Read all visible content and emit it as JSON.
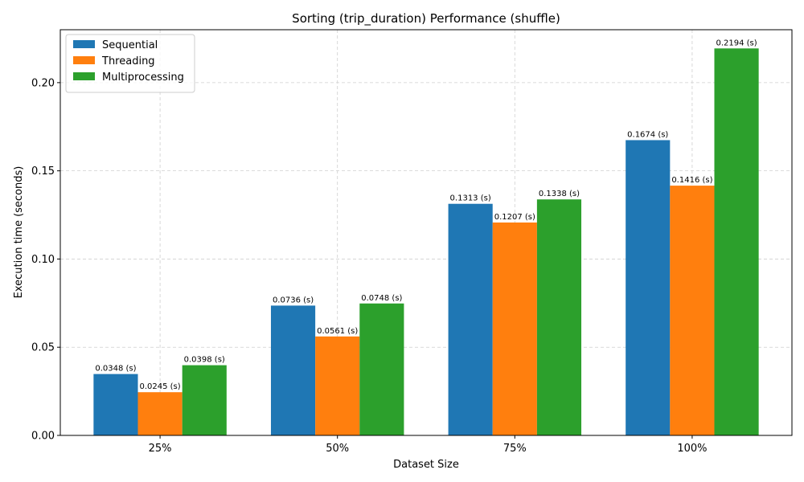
{
  "chart_data": {
    "type": "bar",
    "title": "Sorting (trip_duration) Performance (shuffle)",
    "xlabel": "Dataset Size",
    "ylabel": "Execution time (seconds)",
    "categories": [
      "25%",
      "50%",
      "75%",
      "100%"
    ],
    "ylim": [
      0,
      0.23
    ],
    "yticks": [
      0.0,
      0.05,
      0.1,
      0.15,
      0.2
    ],
    "ytick_labels": [
      "0.00",
      "0.05",
      "0.10",
      "0.15",
      "0.20"
    ],
    "grid": true,
    "legend_position": "top-left",
    "data_label_suffix": " (s)",
    "series": [
      {
        "name": "Sequential",
        "color": "#1f77b4",
        "values": [
          0.0348,
          0.0736,
          0.1313,
          0.1674
        ],
        "labels": [
          "0.0348 (s)",
          "0.0736 (s)",
          "0.1313 (s)",
          "0.1674 (s)"
        ]
      },
      {
        "name": "Threading",
        "color": "#ff7f0e",
        "values": [
          0.0245,
          0.0561,
          0.1207,
          0.1416
        ],
        "labels": [
          "0.0245 (s)",
          "0.0561 (s)",
          "0.1207 (s)",
          "0.1416 (s)"
        ]
      },
      {
        "name": "Multiprocessing",
        "color": "#2ca02c",
        "values": [
          0.0398,
          0.0748,
          0.1338,
          0.2194
        ],
        "labels": [
          "0.0398 (s)",
          "0.0748 (s)",
          "0.1338 (s)",
          "0.2194 (s)"
        ]
      }
    ]
  }
}
